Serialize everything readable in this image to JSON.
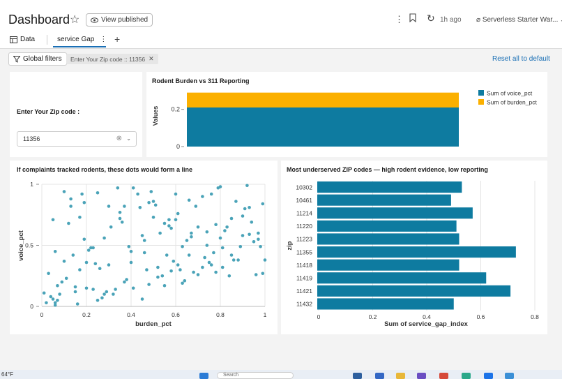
{
  "header": {
    "title": "Dashboard",
    "view_published": "View published",
    "refresh_time": "1h ago",
    "warehouse": "Serverless Starter War..."
  },
  "tabs": [
    {
      "label": "Data"
    },
    {
      "label": "service Gap"
    }
  ],
  "filters": {
    "global_label": "Global filters",
    "chip": "Enter Your Zip code :: 11356",
    "reset": "Reset all to default"
  },
  "zip_widget": {
    "label": "Enter Your Zip code :",
    "value": "11356"
  },
  "colors": {
    "voice": "#0e7ba0",
    "burden": "#fbb000",
    "bar": "#0e7ba0",
    "dot": "#4aa3b8"
  },
  "chart_data": [
    {
      "type": "bar",
      "title": "Rodent Burden vs 311 Reporting",
      "ylabel": "Values",
      "stacked": true,
      "categories": [
        ""
      ],
      "series": [
        {
          "name": "Sum of voice_pct",
          "values": [
            0.21
          ]
        },
        {
          "name": "Sum of burden_pct",
          "values": [
            0.08
          ]
        }
      ],
      "ylim": [
        0,
        0.3
      ],
      "yticks": [
        "0",
        "0.2"
      ],
      "legend": "right"
    },
    {
      "type": "scatter",
      "title": "If complaints tracked rodents, these dots would form a line",
      "xlabel": "burden_pct",
      "ylabel": "voice_pct",
      "xlim": [
        0,
        1
      ],
      "ylim": [
        0,
        1
      ],
      "xticks": [
        "0",
        "0.2",
        "0.4",
        "0.6",
        "0.8",
        "1"
      ],
      "yticks": [
        "0",
        "0.5",
        "1"
      ],
      "points": [
        [
          0.01,
          0.11
        ],
        [
          0.02,
          0.03
        ],
        [
          0.03,
          0.27
        ],
        [
          0.04,
          0.08
        ],
        [
          0.05,
          0.06
        ],
        [
          0.06,
          0.01
        ],
        [
          0.06,
          0.03
        ],
        [
          0.07,
          0.05
        ],
        [
          0.05,
          0.71
        ],
        [
          0.06,
          0.45
        ],
        [
          0.07,
          0.17
        ],
        [
          0.08,
          0.1
        ],
        [
          0.09,
          0.2
        ],
        [
          0.1,
          0.37
        ],
        [
          0.1,
          0.94
        ],
        [
          0.11,
          0.23
        ],
        [
          0.12,
          0.68
        ],
        [
          0.13,
          0.82
        ],
        [
          0.13,
          0.88
        ],
        [
          0.14,
          0.42
        ],
        [
          0.15,
          0.12
        ],
        [
          0.15,
          0.16
        ],
        [
          0.16,
          0.02
        ],
        [
          0.17,
          0.73
        ],
        [
          0.17,
          0.3
        ],
        [
          0.18,
          0.92
        ],
        [
          0.19,
          0.85
        ],
        [
          0.19,
          0.55
        ],
        [
          0.2,
          0.36
        ],
        [
          0.2,
          0.15
        ],
        [
          0.21,
          0.46
        ],
        [
          0.22,
          0.48
        ],
        [
          0.23,
          0.48
        ],
        [
          0.24,
          0.35
        ],
        [
          0.23,
          0.14
        ],
        [
          0.25,
          0.93
        ],
        [
          0.25,
          0.05
        ],
        [
          0.26,
          0.31
        ],
        [
          0.27,
          0.07
        ],
        [
          0.28,
          0.1
        ],
        [
          0.29,
          0.12
        ],
        [
          0.28,
          0.56
        ],
        [
          0.3,
          0.34
        ],
        [
          0.3,
          0.82
        ],
        [
          0.31,
          0.65
        ],
        [
          0.32,
          0.1
        ],
        [
          0.33,
          0.14
        ],
        [
          0.34,
          0.97
        ],
        [
          0.35,
          0.77
        ],
        [
          0.35,
          0.72
        ],
        [
          0.36,
          0.69
        ],
        [
          0.37,
          0.2
        ],
        [
          0.38,
          0.22
        ],
        [
          0.37,
          0.82
        ],
        [
          0.39,
          0.49
        ],
        [
          0.4,
          0.36
        ],
        [
          0.4,
          0.45
        ],
        [
          0.41,
          0.15
        ],
        [
          0.41,
          0.97
        ],
        [
          0.43,
          0.92
        ],
        [
          0.44,
          0.81
        ],
        [
          0.45,
          0.06
        ],
        [
          0.45,
          0.58
        ],
        [
          0.46,
          0.54
        ],
        [
          0.46,
          0.44
        ],
        [
          0.47,
          0.3
        ],
        [
          0.48,
          0.85
        ],
        [
          0.48,
          0.18
        ],
        [
          0.49,
          0.94
        ],
        [
          0.5,
          0.86
        ],
        [
          0.5,
          0.73
        ],
        [
          0.51,
          0.83
        ],
        [
          0.52,
          0.24
        ],
        [
          0.52,
          0.32
        ],
        [
          0.53,
          0.6
        ],
        [
          0.54,
          0.25
        ],
        [
          0.55,
          0.68
        ],
        [
          0.55,
          0.17
        ],
        [
          0.56,
          0.42
        ],
        [
          0.57,
          0.66
        ],
        [
          0.57,
          0.71
        ],
        [
          0.58,
          0.64
        ],
        [
          0.58,
          0.29
        ],
        [
          0.59,
          0.37
        ],
        [
          0.6,
          0.92
        ],
        [
          0.6,
          0.71
        ],
        [
          0.61,
          0.34
        ],
        [
          0.61,
          0.76
        ],
        [
          0.62,
          0.3
        ],
        [
          0.63,
          0.49
        ],
        [
          0.63,
          0.19
        ],
        [
          0.64,
          0.21
        ],
        [
          0.65,
          0.54
        ],
        [
          0.66,
          0.87
        ],
        [
          0.66,
          0.42
        ],
        [
          0.67,
          0.6
        ],
        [
          0.67,
          0.57
        ],
        [
          0.68,
          0.28
        ],
        [
          0.69,
          0.82
        ],
        [
          0.7,
          0.26
        ],
        [
          0.7,
          0.65
        ],
        [
          0.72,
          0.32
        ],
        [
          0.72,
          0.9
        ],
        [
          0.73,
          0.4
        ],
        [
          0.74,
          0.61
        ],
        [
          0.74,
          0.5
        ],
        [
          0.75,
          0.36
        ],
        [
          0.76,
          0.34
        ],
        [
          0.76,
          0.92
        ],
        [
          0.77,
          0.44
        ],
        [
          0.78,
          0.67
        ],
        [
          0.78,
          0.28
        ],
        [
          0.79,
          0.97
        ],
        [
          0.8,
          0.98
        ],
        [
          0.8,
          0.56
        ],
        [
          0.81,
          0.48
        ],
        [
          0.81,
          0.32
        ],
        [
          0.82,
          0.62
        ],
        [
          0.83,
          0.65
        ],
        [
          0.84,
          0.25
        ],
        [
          0.85,
          0.72
        ],
        [
          0.85,
          0.42
        ],
        [
          0.86,
          0.38
        ],
        [
          0.87,
          0.86
        ],
        [
          0.88,
          0.38
        ],
        [
          0.89,
          0.49
        ],
        [
          0.9,
          0.58
        ],
        [
          0.9,
          0.74
        ],
        [
          0.91,
          0.8
        ],
        [
          0.92,
          0.99
        ],
        [
          0.93,
          0.81
        ],
        [
          0.93,
          0.59
        ],
        [
          0.94,
          0.69
        ],
        [
          0.95,
          0.53
        ],
        [
          0.96,
          0.26
        ],
        [
          0.97,
          0.6
        ],
        [
          0.97,
          0.55
        ],
        [
          0.98,
          0.49
        ],
        [
          0.99,
          0.27
        ],
        [
          0.99,
          0.84
        ],
        [
          1.0,
          0.38
        ]
      ]
    },
    {
      "type": "bar",
      "orientation": "horizontal",
      "title": "Most underserved ZIP codes — high rodent evidence, low reporting",
      "xlabel": "Sum of service_gap_index",
      "ylabel": "zip",
      "categories": [
        "10302",
        "10461",
        "11214",
        "11220",
        "11223",
        "11355",
        "11418",
        "11419",
        "11421",
        "11432"
      ],
      "values": [
        0.53,
        0.49,
        0.57,
        0.51,
        0.52,
        0.73,
        0.52,
        0.62,
        0.71,
        0.5
      ],
      "xlim": [
        0,
        0.8
      ],
      "xticks": [
        "0",
        "0.2",
        "0.4",
        "0.6",
        "0.8"
      ]
    }
  ],
  "taskbar": {
    "weather": "64°F",
    "search": "Search"
  }
}
